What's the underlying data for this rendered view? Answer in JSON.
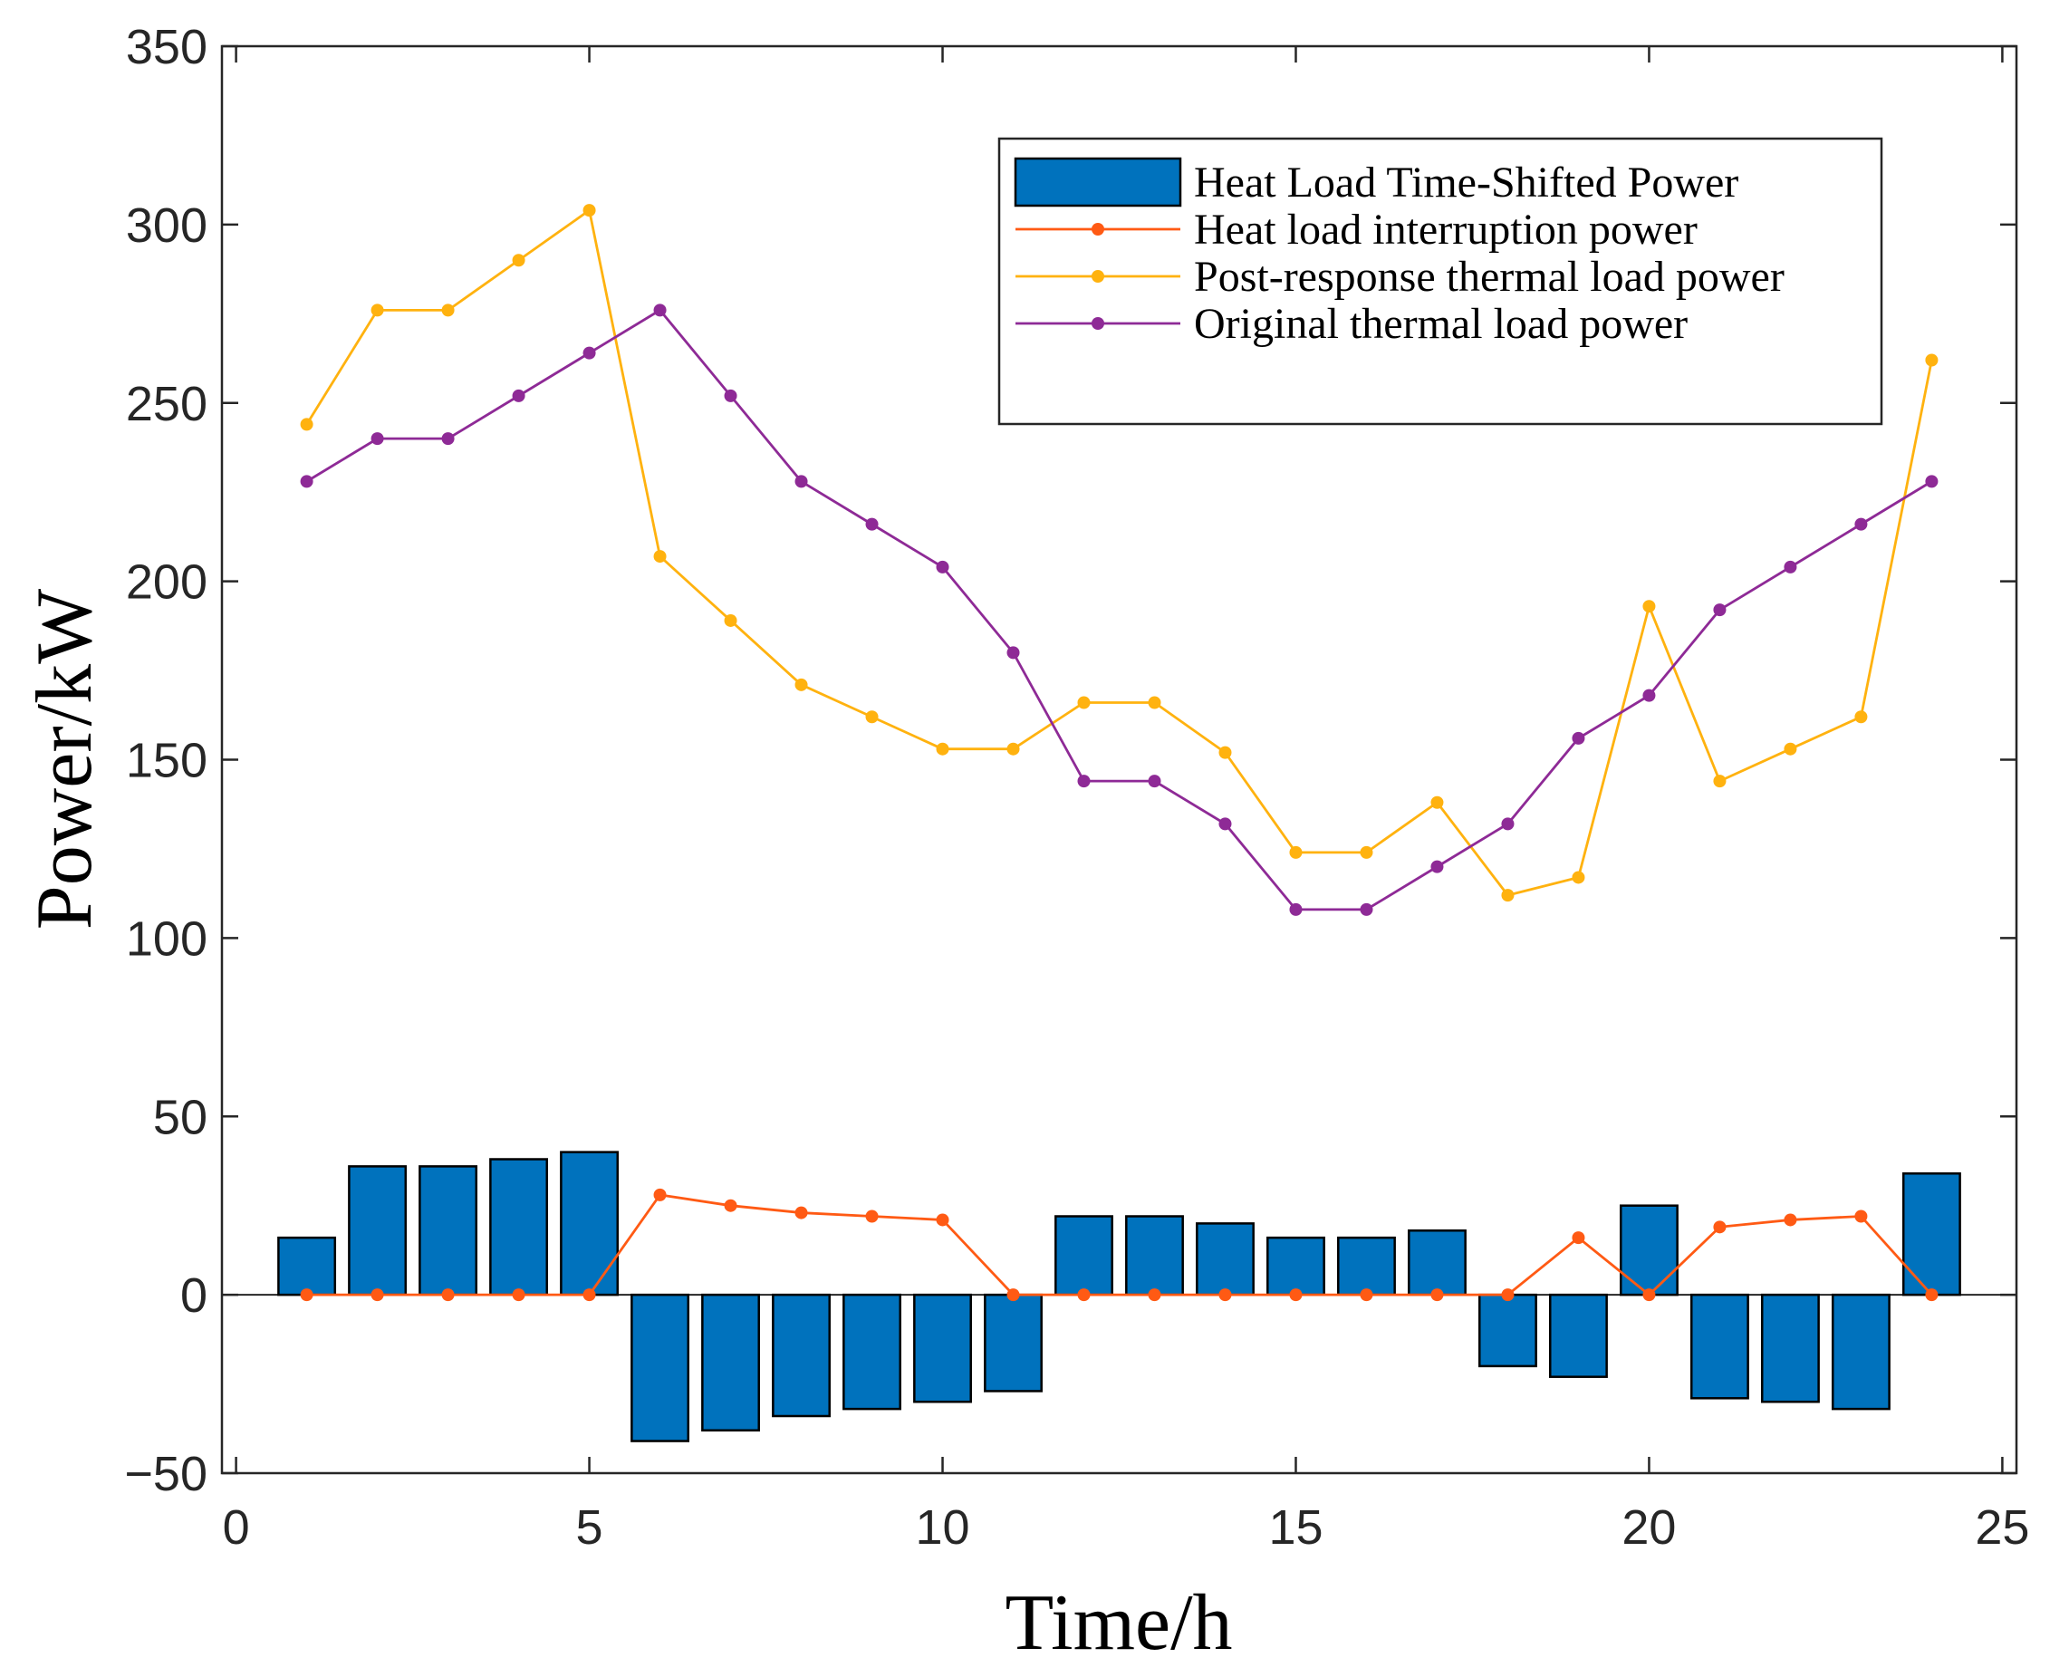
{
  "chart_data": {
    "type": "bar+line",
    "xlabel": "Time/h",
    "ylabel": "Power/kW",
    "xlim": [
      -0.2,
      25.2
    ],
    "ylim": [
      -50,
      350
    ],
    "xticks": [
      0,
      5,
      10,
      15,
      20,
      25
    ],
    "yticks": [
      -50,
      0,
      50,
      100,
      150,
      200,
      250,
      300,
      350
    ],
    "legend_position": "top-right",
    "x": [
      1,
      2,
      3,
      4,
      5,
      6,
      7,
      8,
      9,
      10,
      11,
      12,
      13,
      14,
      15,
      16,
      17,
      18,
      19,
      20,
      21,
      22,
      23,
      24
    ],
    "series": [
      {
        "name": "Heat Load Time-Shifted Power",
        "kind": "bar",
        "color": "#0072BD",
        "values": [
          16,
          36,
          36,
          38,
          40,
          -41,
          -38,
          -34,
          -32,
          -30,
          -27,
          22,
          22,
          20,
          16,
          16,
          18,
          -20,
          -23,
          25,
          -29,
          -30,
          -32,
          34
        ]
      },
      {
        "name": "Heat load interruption power",
        "kind": "line",
        "color": "#FF5A14",
        "values": [
          0,
          0,
          0,
          0,
          0,
          28,
          25,
          23,
          22,
          21,
          0,
          0,
          0,
          0,
          0,
          0,
          0,
          0,
          16,
          0,
          19,
          21,
          22,
          0
        ]
      },
      {
        "name": "Post-response thermal load power",
        "kind": "line",
        "color": "#FFB20F",
        "values": [
          244,
          276,
          276,
          290,
          304,
          207,
          189,
          171,
          162,
          153,
          153,
          166,
          166,
          152,
          124,
          124,
          138,
          112,
          117,
          193,
          144,
          153,
          162,
          262
        ]
      },
      {
        "name": "Original thermal load power",
        "kind": "line",
        "color": "#8E2A96",
        "values": [
          228,
          240,
          240,
          252,
          264,
          276,
          252,
          228,
          216,
          204,
          180,
          144,
          144,
          132,
          108,
          108,
          120,
          132,
          156,
          168,
          192,
          204,
          216,
          228
        ]
      }
    ]
  }
}
